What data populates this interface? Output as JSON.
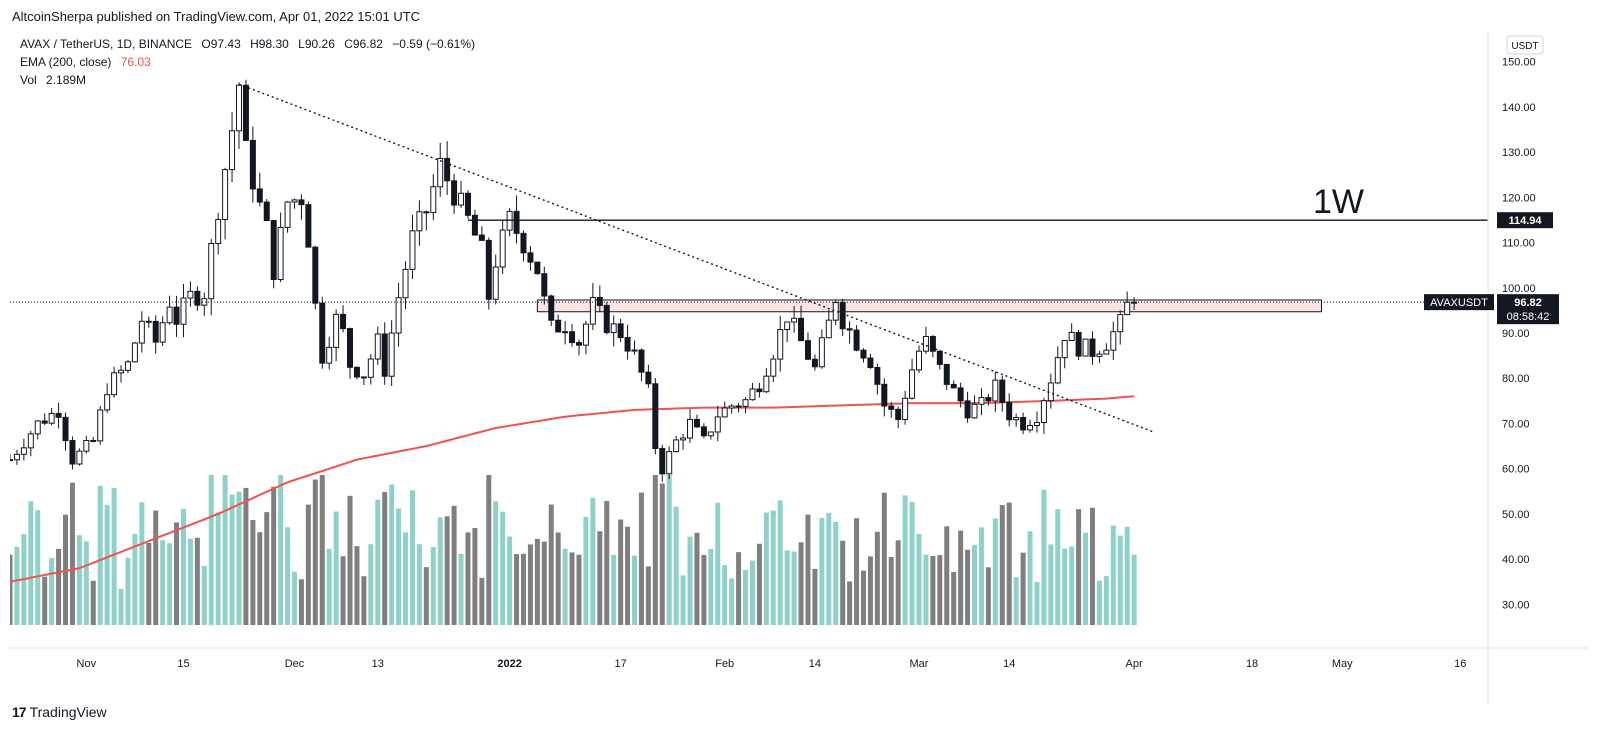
{
  "header": {
    "published": "AltcoinSherpa published on TradingView.com, Apr 01, 2022 15:01 UTC"
  },
  "legend": {
    "symbol": "AVAX / TetherUS, 1D, BINANCE",
    "open": "O97.43",
    "high": "H98.30",
    "low": "L90.26",
    "close": "C96.82",
    "change": "−0.59 (−0.61%)",
    "ema_label": "EMA (200, close)",
    "ema_value": "76.03",
    "vol_label": "Vol",
    "vol_value": "2.189M"
  },
  "annotation_label": "1W",
  "price_box": {
    "currency": "USDT",
    "level_tag": "114.94",
    "symbol_tag": "AVAXUSDT",
    "last_price": "96.82",
    "countdown": "08:58:42"
  },
  "footer": {
    "brand": "TradingView"
  },
  "colors": {
    "up": "#26a69a",
    "down": "#131722",
    "ema": "#ef5350",
    "vol_up": "#8fd1c9",
    "vol_down": "#7f7f7f",
    "zone_fill": "#fbe4e4"
  },
  "chart_data": {
    "type": "candlestick",
    "title": "AVAX / TetherUS, 1D, BINANCE",
    "y_axis": {
      "min": 25,
      "max": 155,
      "ticks": [
        30,
        40,
        50,
        60,
        70,
        80,
        90,
        100,
        110,
        120,
        130,
        140,
        150
      ]
    },
    "x_ticks": [
      {
        "day": 11,
        "label": "Nov"
      },
      {
        "day": 25,
        "label": "15"
      },
      {
        "day": 41,
        "label": "Dec"
      },
      {
        "day": 53,
        "label": "13"
      },
      {
        "day": 72,
        "label": "2022"
      },
      {
        "day": 88,
        "label": "17"
      },
      {
        "day": 103,
        "label": "Feb"
      },
      {
        "day": 116,
        "label": "14"
      },
      {
        "day": 131,
        "label": "Mar"
      },
      {
        "day": 144,
        "label": "14"
      },
      {
        "day": 162,
        "label": "Apr"
      },
      {
        "day": 179,
        "label": "18"
      },
      {
        "day": 192,
        "label": "May"
      },
      {
        "day": 209,
        "label": "16"
      }
    ],
    "x_range": [
      0,
      213
    ],
    "key_points": [
      [
        0,
        62
      ],
      [
        4,
        70
      ],
      [
        7,
        73
      ],
      [
        9,
        62
      ],
      [
        12,
        66
      ],
      [
        14,
        78
      ],
      [
        17,
        83
      ],
      [
        19,
        93
      ],
      [
        21,
        88
      ],
      [
        23,
        97
      ],
      [
        24,
        93
      ],
      [
        26,
        98
      ],
      [
        28,
        99
      ],
      [
        30,
        118
      ],
      [
        32,
        135
      ],
      [
        33,
        145
      ],
      [
        34,
        130
      ],
      [
        36,
        118
      ],
      [
        37,
        113
      ],
      [
        38,
        104
      ],
      [
        40,
        119
      ],
      [
        42,
        120
      ],
      [
        43,
        111
      ],
      [
        44,
        96
      ],
      [
        45,
        85
      ],
      [
        47,
        93
      ],
      [
        48,
        90
      ],
      [
        49,
        83
      ],
      [
        51,
        81
      ],
      [
        53,
        88
      ],
      [
        54,
        82
      ],
      [
        56,
        98
      ],
      [
        58,
        111
      ],
      [
        60,
        117
      ],
      [
        62,
        127
      ],
      [
        64,
        121
      ],
      [
        66,
        115
      ],
      [
        68,
        108
      ],
      [
        69,
        98
      ],
      [
        70,
        106
      ],
      [
        72,
        115
      ],
      [
        74,
        110
      ],
      [
        76,
        104
      ],
      [
        77,
        97
      ],
      [
        78,
        91
      ],
      [
        80,
        92
      ],
      [
        82,
        88
      ],
      [
        84,
        96
      ],
      [
        86,
        92
      ],
      [
        88,
        90
      ],
      [
        90,
        85
      ],
      [
        92,
        77
      ],
      [
        93,
        65
      ],
      [
        94,
        60
      ],
      [
        96,
        66
      ],
      [
        98,
        70
      ],
      [
        100,
        66
      ],
      [
        102,
        72
      ],
      [
        104,
        74
      ],
      [
        106,
        75
      ],
      [
        108,
        79
      ],
      [
        110,
        86
      ],
      [
        112,
        94
      ],
      [
        114,
        88
      ],
      [
        116,
        82
      ],
      [
        118,
        92
      ],
      [
        119,
        98
      ],
      [
        120,
        93
      ],
      [
        122,
        88
      ],
      [
        124,
        84
      ],
      [
        126,
        74
      ],
      [
        128,
        71
      ],
      [
        130,
        82
      ],
      [
        131,
        86
      ],
      [
        132,
        88
      ],
      [
        134,
        82
      ],
      [
        136,
        77
      ],
      [
        138,
        73
      ],
      [
        140,
        74
      ],
      [
        142,
        78
      ],
      [
        144,
        72
      ],
      [
        146,
        70
      ],
      [
        148,
        72
      ],
      [
        150,
        80
      ],
      [
        152,
        90
      ],
      [
        154,
        87
      ],
      [
        156,
        86
      ],
      [
        158,
        88
      ],
      [
        160,
        92
      ],
      [
        161,
        96
      ],
      [
        162,
        97
      ]
    ],
    "ema_points": [
      [
        0,
        35
      ],
      [
        10,
        38
      ],
      [
        20,
        44
      ],
      [
        30,
        50
      ],
      [
        40,
        57
      ],
      [
        50,
        62
      ],
      [
        60,
        65
      ],
      [
        70,
        69
      ],
      [
        80,
        71.5
      ],
      [
        90,
        73
      ],
      [
        100,
        73.5
      ],
      [
        110,
        73.5
      ],
      [
        120,
        74
      ],
      [
        130,
        74.5
      ],
      [
        140,
        74.5
      ],
      [
        150,
        75
      ],
      [
        158,
        75.5
      ],
      [
        162,
        76.03
      ]
    ],
    "volume_scale_max": 1.0,
    "horizontal_levels": [
      {
        "price": 114.94,
        "from_day": 66
      }
    ],
    "resistance_zone": {
      "low": 94.7,
      "high": 97.3,
      "from_day": 76,
      "to_day": 189
    },
    "trendline": {
      "from": [
        33,
        145
      ],
      "to": [
        165,
        68
      ]
    },
    "last_close": 96.82
  }
}
